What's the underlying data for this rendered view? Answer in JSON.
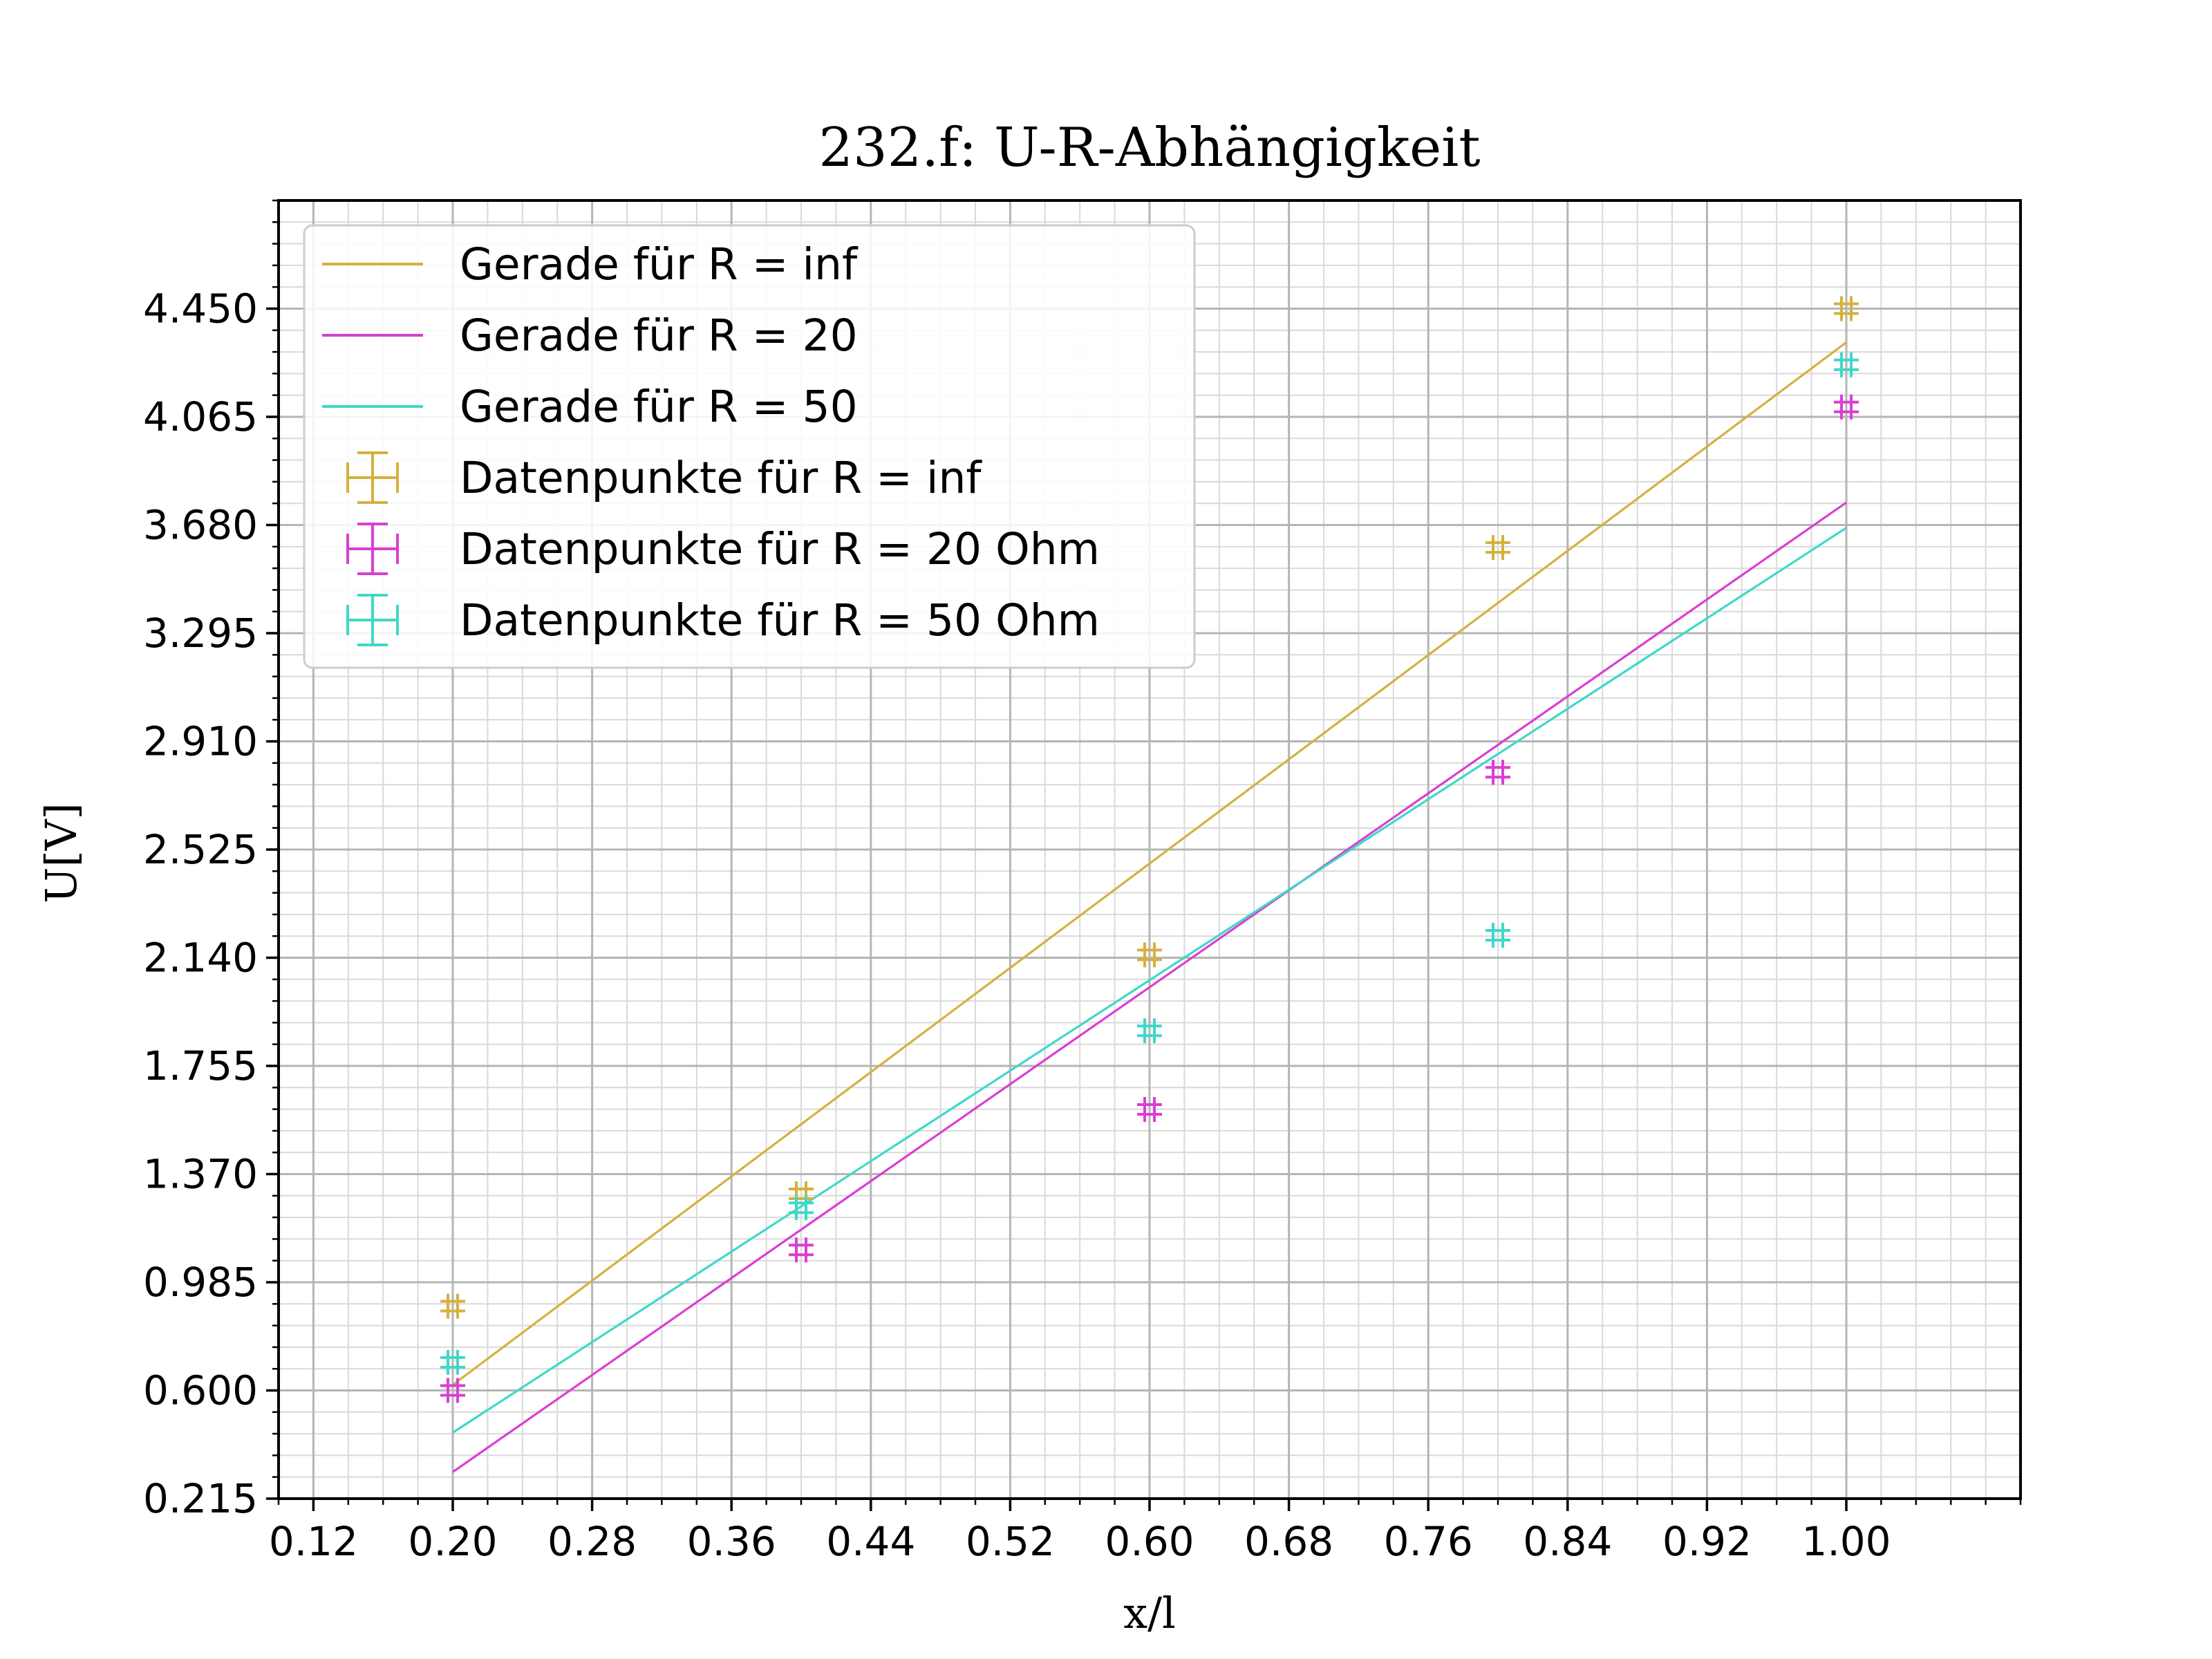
{
  "chart_data": {
    "type": "scatter",
    "title": "232.f: U-R-Abhängigkeit",
    "xlabel": "x/l",
    "ylabel": "U[V]",
    "xlim": [
      0.1,
      1.1
    ],
    "ylim": [
      0.215,
      4.835
    ],
    "x_ticks": [
      "0.12",
      "0.20",
      "0.28",
      "0.36",
      "0.44",
      "0.52",
      "0.60",
      "0.68",
      "0.76",
      "0.84",
      "0.92",
      "1.00"
    ],
    "y_ticks": [
      "0.215",
      "0.600",
      "0.985",
      "1.370",
      "1.755",
      "2.140",
      "2.525",
      "2.910",
      "3.295",
      "3.680",
      "4.065",
      "4.450"
    ],
    "grid": true,
    "minor_grid": true,
    "legend_position": "top-left",
    "lines": [
      {
        "name": "Gerade für R = inf",
        "color": "#d4b13f",
        "x": [
          0.2,
          1.0
        ],
        "y": [
          0.62,
          4.33
        ]
      },
      {
        "name": "Gerade für R = 20",
        "color": "#d83fd3",
        "x": [
          0.2,
          1.0
        ],
        "y": [
          0.31,
          3.76
        ]
      },
      {
        "name": "Gerade für R = 50",
        "color": "#3fd8c8",
        "x": [
          0.2,
          1.0
        ],
        "y": [
          0.45,
          3.67
        ]
      }
    ],
    "series": [
      {
        "name": "Datenpunkte für R = inf",
        "color": "#d4b13f",
        "x": [
          0.2,
          0.4,
          0.6,
          0.8,
          1.0
        ],
        "y": [
          0.9,
          1.3,
          2.15,
          3.6,
          4.45
        ]
      },
      {
        "name": "Datenpunkte für R = 20 Ohm",
        "color": "#d83fd3",
        "x": [
          0.2,
          0.4,
          0.6,
          0.8,
          1.0
        ],
        "y": [
          0.6,
          1.1,
          1.6,
          2.8,
          4.1
        ]
      },
      {
        "name": "Datenpunkte für R = 50 Ohm",
        "color": "#3fd8c8",
        "x": [
          0.2,
          0.4,
          0.6,
          0.8,
          1.0
        ],
        "y": [
          0.7,
          1.25,
          1.88,
          2.22,
          4.25
        ]
      }
    ]
  }
}
